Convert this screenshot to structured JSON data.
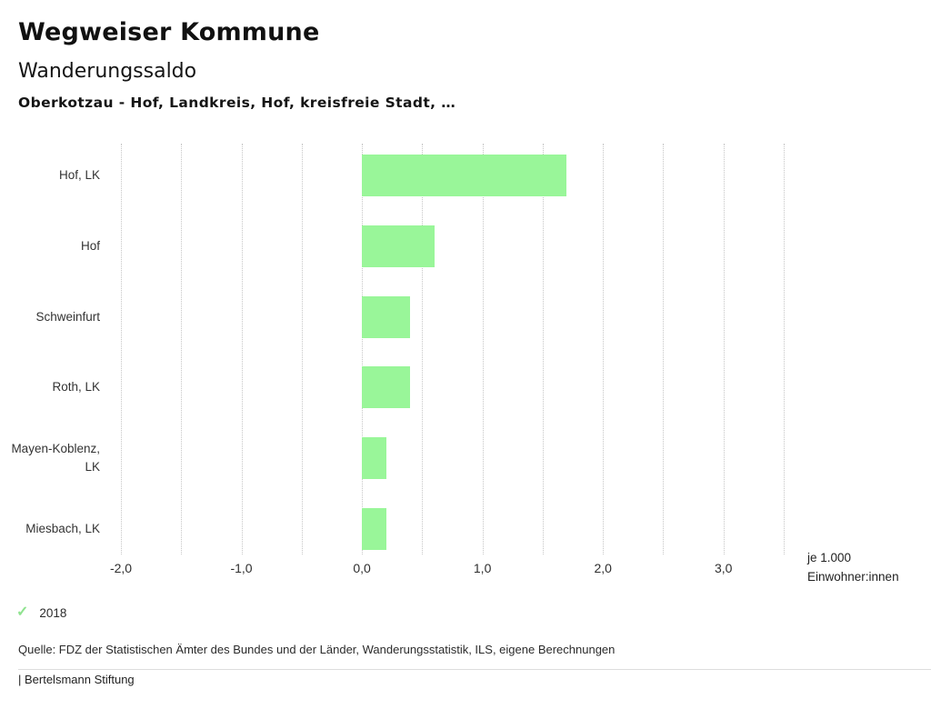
{
  "header": {
    "title": "Wegweiser Kommune",
    "subtitle": "Wanderungssaldo",
    "context": "Oberkotzau - Hof, Landkreis, Hof, kreisfreie Stadt, …"
  },
  "chart_data": {
    "type": "bar",
    "orientation": "horizontal",
    "title": "Wanderungssaldo",
    "categories": [
      "Hof, LK",
      "Hof",
      "Schweinfurt",
      "Roth, LK",
      "Mayen-Koblenz, LK",
      "Miesbach, LK"
    ],
    "series": [
      {
        "name": "2018",
        "values": [
          1.7,
          0.6,
          0.4,
          0.4,
          0.2,
          0.2
        ]
      }
    ],
    "unit_note_line1": "je 1.000",
    "unit_note_line2": "Einwohner:innen",
    "x_tick_labels": [
      "-2,0",
      "-1,0",
      "0,0",
      "1,0",
      "2,0",
      "3,0"
    ],
    "x_tick_values": [
      -2,
      -1,
      0,
      1,
      2,
      3
    ],
    "xlim": [
      -2.0,
      3.5
    ],
    "gridline_step": 0.5,
    "grid": true,
    "bar_color": "#99f699",
    "gridline_color": "#c6c6c6",
    "legend_position": "bottom-left"
  },
  "legend": {
    "year": "2018",
    "check_icon": "✓",
    "check_color": "#8fe38f"
  },
  "footer": {
    "source": "Quelle: FDZ der Statistischen Ämter des Bundes und der Länder, Wanderungsstatistik, ILS, eigene Berechnungen",
    "brand": "| Bertelsmann Stiftung"
  }
}
